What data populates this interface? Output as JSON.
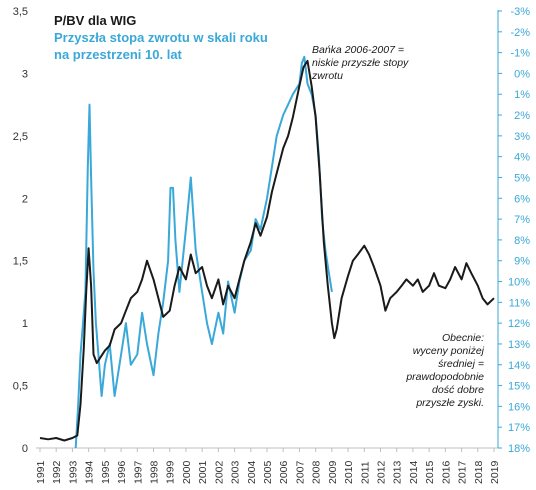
{
  "chart_data": {
    "type": "line",
    "legend": {
      "line1": "P/BV dla WIG",
      "line2": "Przyszła stopa zwrotu w skali roku",
      "line3": "na przestrzeni 10. lat"
    },
    "colors": {
      "pbv": "#1a1a1a",
      "return": "#3aa8d8"
    },
    "x_ticks": [
      "1991",
      "1992",
      "1993",
      "1994",
      "1995",
      "1996",
      "1997",
      "1998",
      "1999",
      "2000",
      "2001",
      "2002",
      "2003",
      "2004",
      "2005",
      "2006",
      "2007",
      "2008",
      "2009",
      "2010",
      "2011",
      "2012",
      "2013",
      "2014",
      "2015",
      "2016",
      "2017",
      "2018",
      "2019"
    ],
    "y_left": {
      "ticks": [
        "0",
        "0,5",
        "1",
        "1,5",
        "2",
        "2,5",
        "3",
        "3,5"
      ],
      "range": [
        0,
        3.5
      ]
    },
    "y_right": {
      "ticks": [
        "-3%",
        "-2%",
        "-1%",
        "0%",
        "1%",
        "2%",
        "3%",
        "4%",
        "5%",
        "6%",
        "7%",
        "8%",
        "9%",
        "10%",
        "11%",
        "12%",
        "13%",
        "14%",
        "15%",
        "16%",
        "17%",
        "18%"
      ],
      "range": [
        -3,
        18
      ],
      "inverted": true
    },
    "xlim": [
      1991,
      2019
    ],
    "series": [
      {
        "name": "P/BV dla WIG",
        "axis": "left",
        "x": [
          1991.0,
          1991.5,
          1992.0,
          1992.5,
          1993.0,
          1993.3,
          1993.5,
          1993.7,
          1993.85,
          1994.0,
          1994.15,
          1994.3,
          1994.5,
          1994.7,
          1995.0,
          1995.3,
          1995.6,
          1996.0,
          1996.3,
          1996.6,
          1997.0,
          1997.3,
          1997.6,
          1998.0,
          1998.3,
          1998.6,
          1999.0,
          1999.3,
          1999.6,
          2000.0,
          2000.3,
          2000.6,
          2001.0,
          2001.3,
          2001.6,
          2002.0,
          2002.3,
          2002.6,
          2003.0,
          2003.3,
          2003.6,
          2004.0,
          2004.3,
          2004.6,
          2005.0,
          2005.3,
          2005.6,
          2006.0,
          2006.3,
          2006.6,
          2007.0,
          2007.25,
          2007.5,
          2007.75,
          2008.0,
          2008.25,
          2008.5,
          2008.75,
          2009.0,
          2009.15,
          2009.3,
          2009.6,
          2010.0,
          2010.3,
          2010.6,
          2011.0,
          2011.3,
          2011.6,
          2012.0,
          2012.3,
          2012.6,
          2013.0,
          2013.3,
          2013.6,
          2014.0,
          2014.3,
          2014.6,
          2015.0,
          2015.3,
          2015.6,
          2016.0,
          2016.3,
          2016.6,
          2017.0,
          2017.3,
          2017.6,
          2018.0,
          2018.3,
          2018.6,
          2019.0
        ],
        "values": [
          0.08,
          0.07,
          0.08,
          0.06,
          0.08,
          0.1,
          0.35,
          0.8,
          1.25,
          1.6,
          1.3,
          0.75,
          0.68,
          0.72,
          0.78,
          0.82,
          0.95,
          1.0,
          1.1,
          1.2,
          1.25,
          1.35,
          1.5,
          1.35,
          1.2,
          1.05,
          1.1,
          1.3,
          1.45,
          1.35,
          1.55,
          1.4,
          1.45,
          1.3,
          1.2,
          1.35,
          1.15,
          1.3,
          1.2,
          1.35,
          1.5,
          1.65,
          1.8,
          1.7,
          1.85,
          2.05,
          2.2,
          2.4,
          2.5,
          2.65,
          2.9,
          3.05,
          3.1,
          2.9,
          2.65,
          2.2,
          1.65,
          1.3,
          1.0,
          0.88,
          0.95,
          1.2,
          1.38,
          1.5,
          1.55,
          1.62,
          1.55,
          1.45,
          1.3,
          1.1,
          1.2,
          1.25,
          1.3,
          1.35,
          1.3,
          1.35,
          1.25,
          1.3,
          1.4,
          1.3,
          1.28,
          1.35,
          1.45,
          1.35,
          1.48,
          1.4,
          1.3,
          1.2,
          1.15,
          1.2
        ]
      },
      {
        "name": "Przyszła stopa zwrotu w skali roku na przestrzeni 10. lat",
        "axis": "right",
        "x": [
          1993.2,
          1993.35,
          1993.5,
          1993.65,
          1993.8,
          1993.95,
          1994.05,
          1994.15,
          1994.3,
          1994.45,
          1994.6,
          1994.8,
          1995.0,
          1995.3,
          1995.6,
          1996.0,
          1996.3,
          1996.6,
          1997.0,
          1997.3,
          1997.6,
          1998.0,
          1998.3,
          1998.6,
          1998.9,
          1999.05,
          1999.2,
          1999.35,
          1999.6,
          2000.0,
          2000.3,
          2000.6,
          2001.0,
          2001.3,
          2001.6,
          2002.0,
          2002.3,
          2002.6,
          2003.0,
          2003.3,
          2003.6,
          2004.0,
          2004.3,
          2004.6,
          2005.0,
          2005.3,
          2005.6,
          2006.0,
          2006.3,
          2006.6,
          2007.0,
          2007.15,
          2007.3,
          2007.5,
          2007.75,
          2008.0,
          2008.2,
          2008.4,
          2008.6,
          2008.8,
          2009.0
        ],
        "values": [
          18.0,
          16.0,
          13.5,
          12.0,
          10.5,
          4.5,
          1.5,
          5.0,
          9.5,
          12.0,
          13.5,
          15.5,
          14.0,
          13.0,
          15.5,
          13.5,
          12.0,
          14.0,
          13.5,
          11.5,
          13.0,
          14.5,
          12.5,
          11.0,
          9.0,
          5.5,
          5.5,
          8.0,
          10.5,
          7.5,
          5.0,
          8.5,
          10.5,
          12.0,
          13.0,
          11.5,
          12.5,
          10.0,
          11.5,
          10.0,
          9.0,
          8.5,
          7.0,
          7.5,
          6.0,
          4.5,
          3.0,
          2.0,
          1.5,
          1.0,
          0.5,
          -0.5,
          -0.8,
          0.5,
          1.0,
          2.0,
          4.0,
          7.0,
          8.5,
          9.5,
          10.5
        ]
      }
    ],
    "annotations": [
      {
        "lines": [
          "Bańka 2006-2007 =",
          "niskie przyszłe stopy",
          "zwrotu"
        ]
      },
      {
        "lines": [
          "Obecnie:",
          "wyceny poniżej",
          "średniej =",
          "prawdopodobnie",
          "dość dobre",
          "przyszłe zyski."
        ]
      }
    ]
  }
}
